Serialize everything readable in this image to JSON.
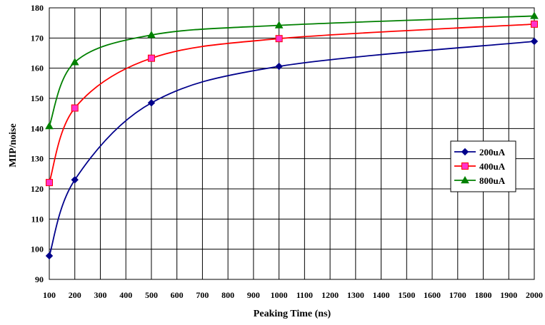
{
  "chart_data": {
    "type": "line",
    "title": "",
    "xlabel": "Peaking Time (ns)",
    "ylabel": "MIP/noise",
    "xlim": [
      100,
      2000
    ],
    "ylim": [
      90,
      180
    ],
    "x_ticks": [
      100,
      200,
      300,
      400,
      500,
      600,
      700,
      800,
      900,
      1000,
      1100,
      1200,
      1300,
      1400,
      1500,
      1600,
      1700,
      1800,
      1900,
      2000
    ],
    "y_ticks": [
      90,
      100,
      110,
      120,
      130,
      140,
      150,
      160,
      170,
      180
    ],
    "grid": true,
    "legend_position": "right",
    "x": [
      100,
      200,
      500,
      1000,
      2000
    ],
    "series": [
      {
        "name": "200uA",
        "values": [
          97.8,
          123.0,
          148.5,
          160.6,
          168.9
        ],
        "color": "#00008b",
        "marker": "diamond"
      },
      {
        "name": "400uA",
        "values": [
          122.1,
          146.8,
          163.3,
          169.8,
          174.6
        ],
        "color": "#ff0000",
        "marker": "square",
        "marker_fill": "#ff33cc"
      },
      {
        "name": "800uA",
        "values": [
          140.8,
          162.0,
          171.0,
          174.2,
          177.3
        ],
        "color": "#008000",
        "marker": "triangle"
      }
    ]
  }
}
